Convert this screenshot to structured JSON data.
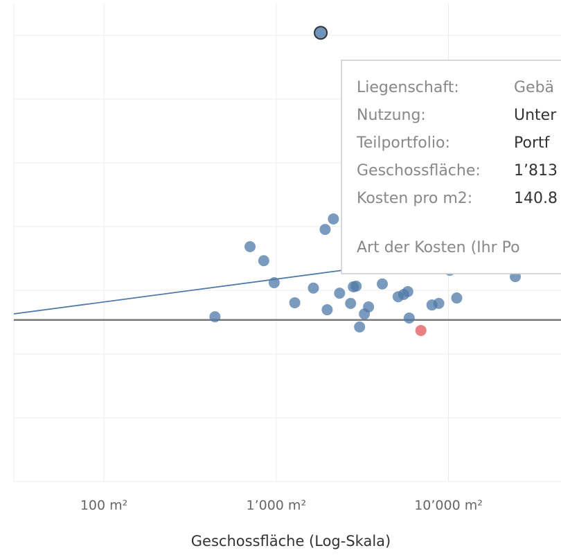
{
  "chart_data": {
    "type": "scatter",
    "x_label": "Geschossfläche (Log-Skala)",
    "xlog": true,
    "xlim": [
      30,
      45000
    ],
    "xticks": [
      {
        "value": 100,
        "label": "100 m²"
      },
      {
        "value": 1000,
        "label": "1’000 m²"
      },
      {
        "value": 10000,
        "label": "10’000 m²"
      }
    ],
    "ylim": [
      0,
      150
    ],
    "yticks": [
      0,
      20,
      40,
      60,
      80,
      100,
      120,
      140
    ],
    "grid": true,
    "reference_line": 50.7,
    "trend": {
      "color": "#4e79a7",
      "x": [
        30,
        2443
      ],
      "y": [
        52.6,
        66.3
      ]
    },
    "series": [
      {
        "color": "#4e79a7",
        "x": [
          441,
          705,
          847,
          973,
          1282,
          1644,
          1923,
          2148,
          1977,
          2333,
          2704,
          2805,
          2911,
          3048,
          3251,
          3436,
          4130,
          5105,
          5495,
          5808,
          5916,
          8017,
          8790,
          10186,
          11170,
          24430
        ],
        "values": [
          51.7,
          73.7,
          69.3,
          62.4,
          56.1,
          60.7,
          79.1,
          82.4,
          53.9,
          59.1,
          55.9,
          61.1,
          61.3,
          48.5,
          52.6,
          54.8,
          62.0,
          58.0,
          58.7,
          59.6,
          51.3,
          55.4,
          55.9,
          66.3,
          57.6,
          64.3
        ]
      },
      {
        "color": "#e15759",
        "x": [
          6918
        ],
        "values": [
          47.4
        ]
      },
      {
        "color": "#4e79a7",
        "x": [
          1813
        ],
        "values": [
          140.8
        ]
      }
    ]
  },
  "tooltip": {
    "rows": [
      {
        "label": "Liegenschaft:",
        "value": "Gebä"
      },
      {
        "label": "Nutzung:",
        "value": "Unter"
      },
      {
        "label": "Teilportfolio:",
        "value": "Portf"
      },
      {
        "label": "Geschossfläche:",
        "value": "1’813"
      },
      {
        "label": "Kosten pro m2:",
        "value": "140.8"
      }
    ],
    "footer": "Art der Kosten (Ihr Po"
  }
}
